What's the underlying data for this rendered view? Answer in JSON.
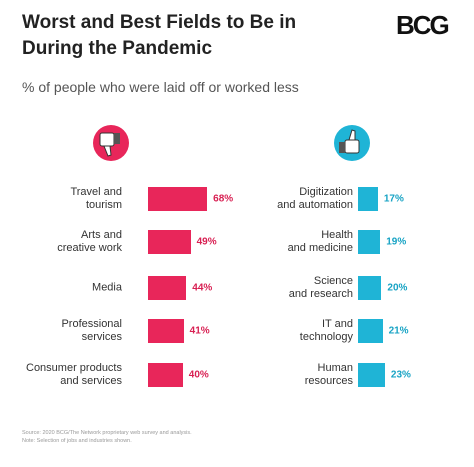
{
  "header": {
    "title": "Worst and Best Fields to Be in\nDuring the Pandemic",
    "logo": "BCG",
    "subtitle": "% of people who were laid off or worked less"
  },
  "chart_data": [
    {
      "type": "bar",
      "orientation": "horizontal",
      "categories": [
        "Travel and\ntourism",
        "Arts and\ncreative work",
        "Media",
        "Professional\nservices",
        "Consumer products\nand services"
      ],
      "values": [
        68,
        49,
        44,
        41,
        40
      ],
      "value_labels": [
        "68%",
        "49%",
        "44%",
        "41%",
        "40%"
      ],
      "color": "#e8265a"
    },
    {
      "type": "bar",
      "orientation": "horizontal",
      "categories": [
        "Digitization\nand automation",
        "Health\nand medicine",
        "Science\nand research",
        "IT and\ntechnology",
        "Human\nresources"
      ],
      "values": [
        17,
        19,
        20,
        21,
        23
      ],
      "value_labels": [
        "17%",
        "19%",
        "20%",
        "21%",
        "23%"
      ],
      "color": "#1fb4d6"
    }
  ],
  "footer": {
    "source": "Source: 2020 BCG/The Network proprietary web survey and analysis.",
    "note": "Note: Selection of jobs and industries shown."
  }
}
